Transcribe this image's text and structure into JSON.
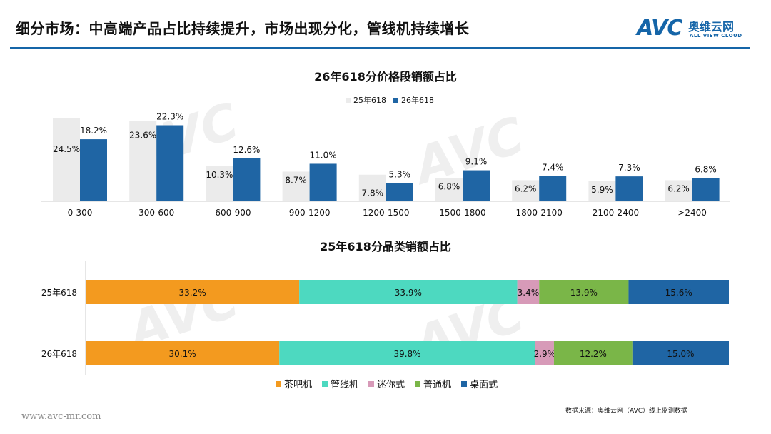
{
  "header": {
    "title": "细分市场：中高端产品占比持续提升，市场出现分化，管线机持续增长",
    "logo_text": "AVC",
    "logo_cn": "奥维云网",
    "logo_en": "ALL VIEW CLOUD"
  },
  "footer": {
    "url": "www.avc-mr.com",
    "source": "数据来源：奥维云网（AVC）线上监测数据"
  },
  "colors": {
    "accent": "#1565a8",
    "series_25": "#ebebeb",
    "series_26": "#1f65a4",
    "tea_bar": "#f39a1f",
    "pipeline": "#4dd9c0",
    "mini": "#d79ab8",
    "normal": "#7ab648",
    "desktop": "#1f65a4"
  },
  "chart_data": [
    {
      "type": "bar",
      "title": "26年618分价格段销额占比",
      "categories": [
        "0-300",
        "300-600",
        "600-900",
        "900-1200",
        "1200-1500",
        "1500-1800",
        "1800-2100",
        "2100-2400",
        ">2400"
      ],
      "series": [
        {
          "name": "25年618",
          "values": [
            24.5,
            23.6,
            10.3,
            8.7,
            7.8,
            6.8,
            6.2,
            5.9,
            6.2
          ],
          "labels": [
            "24.5%",
            "23.6%",
            "10.3%",
            "8.7%",
            "7.8%",
            "6.8%",
            "6.2%",
            "5.9%",
            "6.2%"
          ]
        },
        {
          "name": "26年618",
          "values": [
            18.2,
            22.3,
            12.6,
            11.0,
            5.3,
            9.1,
            7.4,
            7.3,
            6.8
          ],
          "labels": [
            "18.2%",
            "22.3%",
            "12.6%",
            "11.0%",
            "5.3%",
            "9.1%",
            "7.4%",
            "7.3%",
            "6.8%"
          ]
        }
      ],
      "ylim": [
        0,
        25
      ],
      "legend": "top-center",
      "grid": false
    },
    {
      "type": "bar",
      "orientation": "horizontal-stacked",
      "title": "25年618分品类销额占比",
      "categories": [
        "25年618",
        "26年618"
      ],
      "series": [
        {
          "name": "茶吧机",
          "values": [
            33.2,
            30.1
          ],
          "labels": [
            "33.2%",
            "30.1%"
          ]
        },
        {
          "name": "管线机",
          "values": [
            33.9,
            39.8
          ],
          "labels": [
            "33.9%",
            "39.8%"
          ]
        },
        {
          "name": "迷你式",
          "values": [
            3.4,
            2.9
          ],
          "labels": [
            "3.4%",
            "2.9%"
          ]
        },
        {
          "name": "普通机",
          "values": [
            13.9,
            12.2
          ],
          "labels": [
            "13.9%",
            "12.2%"
          ]
        },
        {
          "name": "桌面式",
          "values": [
            15.6,
            15.0
          ],
          "labels": [
            "15.6%",
            "15.0%"
          ]
        }
      ],
      "xlim": [
        0,
        100
      ],
      "legend": "bottom-center",
      "grid": false
    }
  ]
}
